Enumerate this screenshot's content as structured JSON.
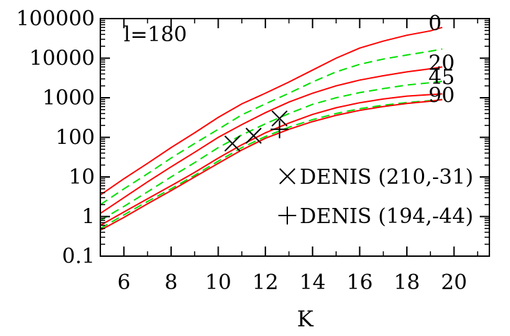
{
  "chart_data": {
    "type": "line",
    "annotation": "l=180",
    "xlabel": "K",
    "ylabel": "",
    "xlim": [
      5,
      21.5
    ],
    "ylim": [
      0.1,
      100000
    ],
    "yscale": "log",
    "x_ticks": [
      6,
      8,
      10,
      12,
      14,
      16,
      18,
      20
    ],
    "y_ticks": [
      {
        "value": 0.1,
        "label": "0.1"
      },
      {
        "value": 1,
        "label": "1"
      },
      {
        "value": 10,
        "label": "10"
      },
      {
        "value": 100,
        "label": "100"
      },
      {
        "value": 1000,
        "label": "1000"
      },
      {
        "value": 10000,
        "label": "10000"
      },
      {
        "value": 100000,
        "label": "100000"
      }
    ],
    "x": [
      5,
      6,
      7,
      8,
      9,
      10,
      11,
      12,
      13,
      14,
      15,
      16,
      17,
      18,
      19,
      19.5
    ],
    "series": [
      {
        "style": "solid-red",
        "end_label": "0",
        "values": [
          3.5,
          9,
          22,
          55,
          130,
          320,
          700,
          1300,
          2500,
          5000,
          10000,
          18000,
          27000,
          38000,
          49000,
          60000
        ]
      },
      {
        "style": "dashed-green",
        "values": [
          2,
          5,
          12,
          30,
          70,
          160,
          370,
          700,
          1300,
          2500,
          4500,
          7000,
          9500,
          12000,
          15000,
          17000
        ]
      },
      {
        "style": "solid-red",
        "end_label": "20",
        "values": [
          1.2,
          3,
          7.5,
          18,
          42,
          100,
          210,
          420,
          780,
          1300,
          2000,
          2800,
          3600,
          4500,
          5400,
          6000
        ]
      },
      {
        "style": "dashed-green",
        "end_label": "45",
        "values": [
          0.8,
          1.8,
          4.2,
          10,
          23,
          55,
          115,
          220,
          400,
          680,
          1000,
          1350,
          1700,
          2100,
          2400,
          2600
        ]
      },
      {
        "style": "solid-red",
        "values": [
          0.6,
          1.3,
          2.8,
          6,
          13,
          30,
          65,
          130,
          230,
          380,
          560,
          750,
          930,
          1100,
          1200,
          1250
        ]
      },
      {
        "style": "dashed-green",
        "end_label": "90",
        "values": [
          0.5,
          1.1,
          2.4,
          5,
          11,
          25,
          55,
          105,
          180,
          280,
          400,
          530,
          650,
          760,
          850,
          900
        ]
      },
      {
        "style": "solid-red",
        "values": [
          0.45,
          0.95,
          2.1,
          4.5,
          10,
          22,
          48,
          95,
          160,
          250,
          360,
          480,
          600,
          720,
          820,
          900
        ]
      }
    ],
    "markers": [
      {
        "name": "DENIS (210,-31)",
        "symbol": "x",
        "points": [
          [
            10.6,
            70
          ],
          [
            11.5,
            110
          ],
          [
            12.6,
            300
          ]
        ]
      },
      {
        "name": "DENIS (194,-44)",
        "symbol": "+",
        "points": [
          [
            12.6,
            160
          ]
        ]
      }
    ],
    "legend_position": "bottom-right",
    "colors": {
      "solid": "#ff0000",
      "dashed": "#00e000",
      "axis": "#000000"
    }
  }
}
